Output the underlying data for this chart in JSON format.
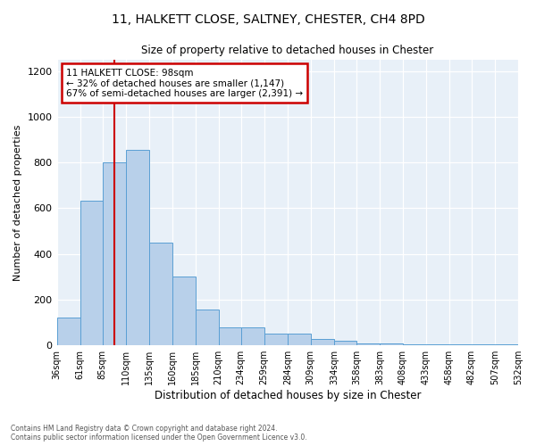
{
  "title1": "11, HALKETT CLOSE, SALTNEY, CHESTER, CH4 8PD",
  "title2": "Size of property relative to detached houses in Chester",
  "xlabel": "Distribution of detached houses by size in Chester",
  "ylabel": "Number of detached properties",
  "annotation_line1": "11 HALKETT CLOSE: 98sqm",
  "annotation_line2": "← 32% of detached houses are smaller (1,147)",
  "annotation_line3": "67% of semi-detached houses are larger (2,391) →",
  "bin_edges": [
    36,
    61,
    85,
    110,
    135,
    160,
    185,
    210,
    234,
    259,
    284,
    309,
    334,
    358,
    383,
    408,
    433,
    458,
    482,
    507,
    532
  ],
  "bar_heights": [
    120,
    635,
    800,
    855,
    450,
    300,
    155,
    80,
    80,
    50,
    50,
    30,
    20,
    10,
    10,
    5,
    5,
    5,
    5,
    5
  ],
  "bar_color": "#b8d0ea",
  "bar_edge_color": "#5a9fd4",
  "vline_color": "#cc0000",
  "vline_x": 98,
  "annotation_box_edge_color": "#cc0000",
  "background_color": "#dce9f5",
  "plot_bg_color": "#e8f0f8",
  "ylim": [
    0,
    1250
  ],
  "yticks": [
    0,
    200,
    400,
    600,
    800,
    1000,
    1200
  ],
  "footer1": "Contains HM Land Registry data © Crown copyright and database right 2024.",
  "footer2": "Contains public sector information licensed under the Open Government Licence v3.0."
}
